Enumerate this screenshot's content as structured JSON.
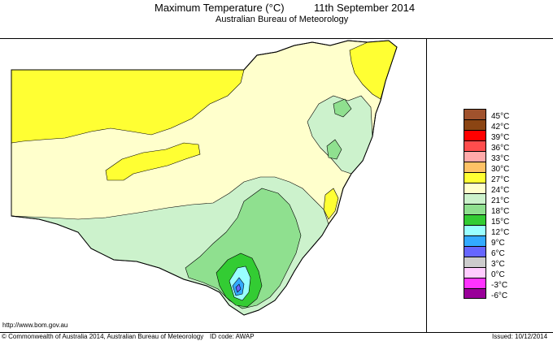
{
  "header": {
    "title": "Maximum Temperature (°C)",
    "date": "11th September 2014",
    "agency": "Australian Bureau of Meteorology"
  },
  "legend": {
    "items": [
      {
        "label": "45°C",
        "color": "#a0522d"
      },
      {
        "label": "42°C",
        "color": "#8b4513"
      },
      {
        "label": "39°C",
        "color": "#ff0000"
      },
      {
        "label": "36°C",
        "color": "#ff4d4d"
      },
      {
        "label": "33°C",
        "color": "#ffaaaa"
      },
      {
        "label": "30°C",
        "color": "#ffc266"
      },
      {
        "label": "27°C",
        "color": "#ffff33"
      },
      {
        "label": "24°C",
        "color": "#ffffcc"
      },
      {
        "label": "21°C",
        "color": "#ccf2cc"
      },
      {
        "label": "18°C",
        "color": "#8fe08f"
      },
      {
        "label": "15°C",
        "color": "#33cc33"
      },
      {
        "label": "12°C",
        "color": "#99ffff"
      },
      {
        "label": "9°C",
        "color": "#33aaff"
      },
      {
        "label": "6°C",
        "color": "#6666ff"
      },
      {
        "label": "3°C",
        "color": "#cccccc"
      },
      {
        "label": "0°C",
        "color": "#ffccff"
      },
      {
        "label": "-3°C",
        "color": "#ff33ff"
      },
      {
        "label": "-6°C",
        "color": "#990099"
      }
    ]
  },
  "footer": {
    "url": "http://www.bom.gov.au",
    "copyright": "© Commonwealth of Australia 2014, Australian Bureau of Meteorology",
    "id_code": "ID code: AWAP",
    "issued": "Issued: 10/12/2014"
  },
  "colors": {
    "band_27": "#ffff33",
    "band_24": "#ffffcc",
    "band_21": "#ccf2cc",
    "band_18": "#8fe08f",
    "band_15": "#33cc33",
    "band_12": "#99ffff",
    "band_9": "#33aaff",
    "band_6": "#6666ff"
  }
}
